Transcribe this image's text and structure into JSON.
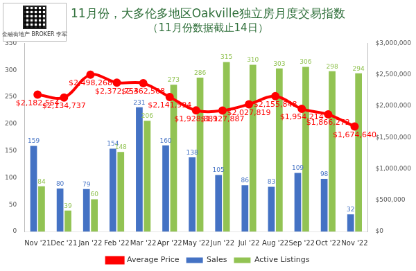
{
  "chart_data": {
    "type": "bar",
    "title": "11月份，大多伦多地区Oakville独立房月度交易指数",
    "subtitle": "（11月份数据截止14日）",
    "annotations": [
      "金融街地产 BROKER 李军"
    ],
    "categories": [
      "Nov '21",
      "Dec '21",
      "Jan '22",
      "Feb '22",
      "Mar '22",
      "Apr '22",
      "May '22",
      "Jun '22",
      "Jul '22",
      "Aug '22",
      "Sep '22",
      "Oct '22",
      "Nov '22"
    ],
    "series": [
      {
        "name": "Sales",
        "color": "#4472c4",
        "values": [
          159,
          80,
          79,
          154,
          231,
          160,
          138,
          105,
          86,
          83,
          109,
          98,
          32
        ]
      },
      {
        "name": "Active Listings",
        "color": "#92c353",
        "values": [
          84,
          39,
          60,
          148,
          206,
          273,
          286,
          315,
          310,
          303,
          306,
          298,
          294
        ]
      },
      {
        "name": "Average Price",
        "type": "line",
        "axis": "y2",
        "color": "#ff0000",
        "marker": "circle",
        "values": [
          2182554,
          2134737,
          2498268,
          2372754,
          2362508,
          2141994,
          1928881,
          1927887,
          2027819,
          2155848,
          1954214,
          1866272,
          1674640
        ],
        "value_labels": [
          "$2,182,554",
          "$2,134,737",
          "$2,498,268",
          "$2,372,754",
          "$2,362,508",
          "$2,141,994",
          "$1,928,881",
          "$1,927,887",
          "$2,027,819",
          "$2,155,848",
          "$1,954,214",
          "$1,866,272",
          "$1,674,640"
        ]
      }
    ],
    "ylim": [
      0,
      350
    ],
    "yticks": [
      0,
      50,
      100,
      150,
      200,
      250,
      300,
      350
    ],
    "y2lim": [
      0,
      3000000
    ],
    "y2ticks": [
      {
        "value": 0,
        "label": "$0"
      },
      {
        "value": 500000,
        "label": "$500,000"
      },
      {
        "value": 1000000,
        "label": "$1,000,000"
      },
      {
        "value": 1500000,
        "label": "$1,500,000"
      },
      {
        "value": 2000000,
        "label": "$2,000,000"
      },
      {
        "value": 2500000,
        "label": "$2,500,000"
      },
      {
        "value": 3000000,
        "label": "$3,000,000"
      }
    ],
    "grid": false,
    "legend": "bottom",
    "data_labels": true
  }
}
